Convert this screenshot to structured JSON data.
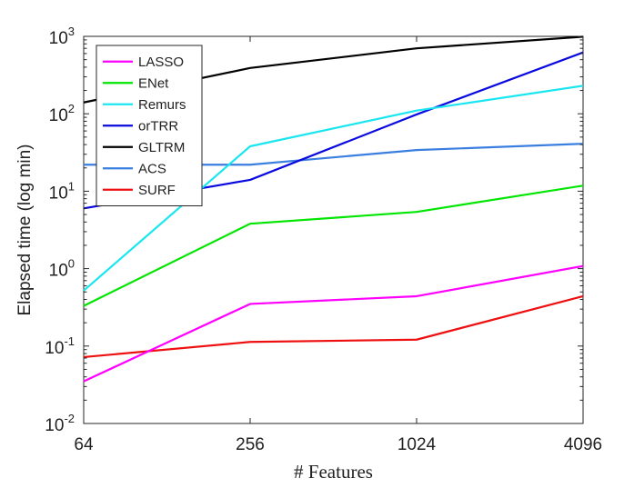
{
  "chart_data": {
    "type": "line",
    "xlabel": "# Features",
    "ylabel": "Elapsed time (log min)",
    "x_scale": "log2",
    "y_scale": "log10",
    "x": [
      64,
      256,
      1024,
      4096
    ],
    "x_tick_labels": [
      "64",
      "256",
      "1024",
      "4096"
    ],
    "xlim": [
      64,
      4096
    ],
    "ylim": [
      0.01,
      1000
    ],
    "y_ticks": [
      {
        "base": "10",
        "exp": "-2",
        "value": 0.01
      },
      {
        "base": "10",
        "exp": "-1",
        "value": 0.1
      },
      {
        "base": "10",
        "exp": "0",
        "value": 1
      },
      {
        "base": "10",
        "exp": "1",
        "value": 10
      },
      {
        "base": "10",
        "exp": "2",
        "value": 100
      },
      {
        "base": "10",
        "exp": "3",
        "value": 1000
      }
    ],
    "grid": false,
    "legend_position": "top-left",
    "series": [
      {
        "name": "LASSO",
        "color": "#ff00ff",
        "values": [
          0.035,
          0.35,
          0.44,
          1.08
        ]
      },
      {
        "name": "ENet",
        "color": "#00e600",
        "values": [
          0.33,
          3.8,
          5.4,
          11.8
        ]
      },
      {
        "name": "Remurs",
        "color": "#1ae6f0",
        "values": [
          0.52,
          38,
          110,
          230
        ]
      },
      {
        "name": "orTRR",
        "color": "#0a0ae0",
        "values": [
          6,
          14,
          98,
          620
        ]
      },
      {
        "name": "GLTRM",
        "color": "#000000",
        "values": [
          140,
          390,
          700,
          990
        ]
      },
      {
        "name": "ACS",
        "color": "#3a7fe0",
        "values": [
          22,
          22,
          34,
          41
        ]
      },
      {
        "name": "SURF",
        "color": "#ee1010",
        "values": [
          0.072,
          0.113,
          0.121,
          0.44
        ]
      }
    ]
  }
}
